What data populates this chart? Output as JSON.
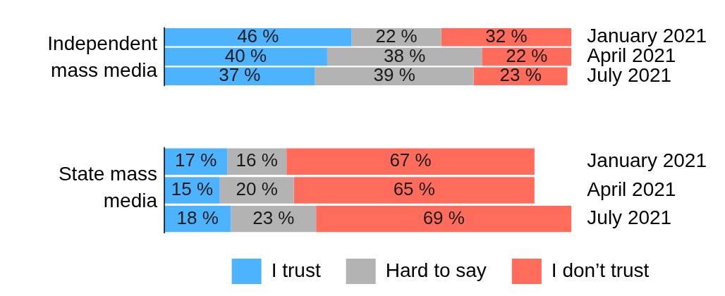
{
  "chart_data": [
    {
      "type": "bar",
      "orientation": "horizontal",
      "stacked": true,
      "ylabel": "Independent mass media",
      "categories": [
        "January 2021",
        "April 2021",
        "July 2021"
      ],
      "tick_labels": "y",
      "series": [
        {
          "color": "#4db3ff",
          "values": [
            46,
            40,
            37
          ],
          "value_labels": [
            "46 %",
            "40 %",
            "37 %"
          ]
        },
        {
          "color": "#b3b3b3",
          "values": [
            22,
            38,
            39
          ],
          "value_labels": [
            "22 %",
            "38 %",
            "39 %"
          ]
        },
        {
          "color": "#ff6c5c",
          "values": [
            32,
            22,
            23
          ],
          "value_labels": [
            "32 %",
            "22 %",
            "23 %"
          ]
        }
      ]
    },
    {
      "type": "bar",
      "orientation": "horizontal",
      "stacked": true,
      "ylabel": "State mass media",
      "categories": [
        "January 2021",
        "April 2021",
        "July 2021"
      ],
      "tick_labels": "y",
      "legend": "bottom",
      "series": [
        {
          "name": "I trust",
          "color": "#4db3ff",
          "values": [
            17,
            15,
            18
          ],
          "value_labels": [
            "17 %",
            "15 %",
            "18 %"
          ]
        },
        {
          "name": "Hard to say",
          "color": "#b3b3b3",
          "values": [
            16,
            20,
            23
          ],
          "value_labels": [
            "16 %",
            "20 %",
            "23 %"
          ]
        },
        {
          "name": "I don’t trust",
          "color": "#ff6c5c",
          "values": [
            67,
            65,
            69
          ],
          "value_labels": [
            "67 %",
            "65 %",
            "69 %"
          ]
        }
      ]
    }
  ]
}
